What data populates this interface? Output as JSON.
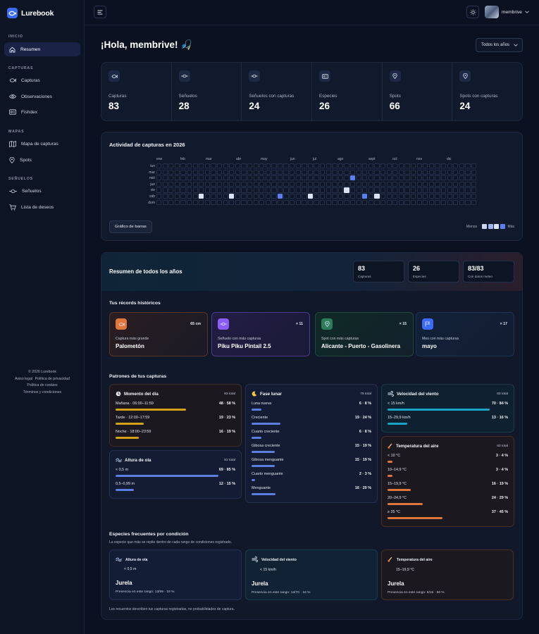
{
  "app": {
    "name": "Lurebook"
  },
  "sidebar": {
    "sections": [
      {
        "title": "INICIO",
        "items": [
          {
            "label": "Resumen",
            "icon": "home-icon",
            "active": true
          }
        ]
      },
      {
        "title": "CAPTURAS",
        "items": [
          {
            "label": "Capturas",
            "icon": "fish-icon"
          },
          {
            "label": "Observaciones",
            "icon": "eye-icon"
          },
          {
            "label": "Fishdex",
            "icon": "card-icon"
          }
        ]
      },
      {
        "title": "MAPAS",
        "items": [
          {
            "label": "Mapa de capturas",
            "icon": "map-icon"
          },
          {
            "label": "Spots",
            "icon": "pin-icon"
          }
        ]
      },
      {
        "title": "SEÑUELOS",
        "items": [
          {
            "label": "Señuelos",
            "icon": "lure-icon"
          },
          {
            "label": "Lista de deseos",
            "icon": "cart-icon"
          }
        ]
      }
    ],
    "footer": {
      "copyright": "© 2026 Lurebook",
      "legal": "Aviso legal",
      "privacy": "Política de privacidad",
      "cookies": "Política de cookies",
      "terms": "Términos y condiciones"
    }
  },
  "topbar": {
    "username": "membrive"
  },
  "main": {
    "greeting": "¡Hola, membrive! 🎣",
    "year_filter": "Todos los años",
    "stats": [
      {
        "label": "Capturas",
        "value": "83",
        "icon": "fish-icon"
      },
      {
        "label": "Señuelos",
        "value": "28",
        "icon": "lure-icon"
      },
      {
        "label": "Señuelos con capturas",
        "value": "24",
        "icon": "lure-icon"
      },
      {
        "label": "Especies",
        "value": "26",
        "icon": "card-icon"
      },
      {
        "label": "Spots",
        "value": "66",
        "icon": "pin-icon"
      },
      {
        "label": "Spots con capturas",
        "value": "24",
        "icon": "pin-icon"
      }
    ],
    "activity": {
      "title": "Actividad de capturas en 2026",
      "months": [
        "ene",
        "feb",
        "mar",
        "abr",
        "may",
        "jun",
        "jul",
        "ago",
        "sept",
        "oct",
        "nov",
        "dic"
      ],
      "days": [
        "lun",
        "mar",
        "mié",
        "jue",
        "vie",
        "sáb",
        "dom"
      ],
      "active_cells": [
        {
          "week": 7,
          "day": 5,
          "level": 1
        },
        {
          "week": 12,
          "day": 5,
          "level": 1
        },
        {
          "week": 20,
          "day": 5,
          "level": 2
        },
        {
          "week": 25,
          "day": 5,
          "level": 1
        },
        {
          "week": 31,
          "day": 4,
          "level": 1
        },
        {
          "week": 32,
          "day": 2,
          "level": 2
        },
        {
          "week": 34,
          "day": 5,
          "level": 2
        },
        {
          "week": 36,
          "day": 5,
          "level": 1
        }
      ],
      "bar_button": "Gráfico de barras",
      "legend_less": "Menos",
      "legend_more": "Más",
      "legend_colors": [
        "#cdd6ee",
        "#9fb2f2",
        "#dbe2f5",
        "#5b7ff0"
      ]
    },
    "summary": {
      "title": "Resumen de todos los años",
      "boxes": [
        {
          "value": "83",
          "label": "Capturas"
        },
        {
          "value": "26",
          "label": "Especies"
        },
        {
          "value": "83/83",
          "label": "Con datos meteo"
        }
      ],
      "records_title": "Tus récords históricos",
      "records": [
        {
          "label": "Captura más grande",
          "value": "Palometón",
          "badge": "65 cm",
          "icon": "fish-icon",
          "accent": "#e0763a"
        },
        {
          "label": "Señuelo con más capturas",
          "value": "Piku Piku Pintail 2.5",
          "badge": "× 11",
          "icon": "lure-icon",
          "accent": "#8b5cf6"
        },
        {
          "label": "Spot con más capturas",
          "value": "Alicante - Puerto - Gasolinera",
          "badge": "× 15",
          "icon": "pin-icon",
          "accent": "#2f7d5b"
        },
        {
          "label": "Mes con más capturas",
          "value": "mayo",
          "badge": "× 17",
          "icon": "calendar-icon",
          "accent": "#3b6cf6"
        }
      ],
      "patterns_title": "Patrones de tus capturas",
      "patterns": {
        "day_time": {
          "title": "Momento del día",
          "total": "83 total",
          "color": "#d4a017",
          "rows": [
            {
              "label": "Mañana · 06:00–11:59",
              "value": "48 · 58 %",
              "pct": 58
            },
            {
              "label": "Tarde · 12:00–17:59",
              "value": "19 · 23 %",
              "pct": 23
            },
            {
              "label": "Noche · 18:00–23:59",
              "value": "16 · 19 %",
              "pct": 19
            }
          ]
        },
        "wave": {
          "title": "Altura de ola",
          "total": "81 total",
          "color": "#5b7fe0",
          "rows": [
            {
              "label": "< 0,5 m",
              "value": "69 · 85 %",
              "pct": 85
            },
            {
              "label": "0,5–0,99 m",
              "value": "12 · 15 %",
              "pct": 15
            }
          ]
        },
        "moon": {
          "title": "Fase lunar",
          "total": "79 total",
          "color": "#5b7fe0",
          "rows": [
            {
              "label": "Luna nueva",
              "value": "6 · 8 %",
              "pct": 8
            },
            {
              "label": "Creciente",
              "value": "19 · 24 %",
              "pct": 24
            },
            {
              "label": "Cuarto creciente",
              "value": "6 · 8 %",
              "pct": 8
            },
            {
              "label": "Gibosa creciente",
              "value": "15 · 19 %",
              "pct": 19
            },
            {
              "label": "Gibosa menguante",
              "value": "15 · 19 %",
              "pct": 19
            },
            {
              "label": "Cuarto menguante",
              "value": "2 · 3 %",
              "pct": 3
            },
            {
              "label": "Menguante",
              "value": "16 · 20 %",
              "pct": 20
            }
          ]
        },
        "wind": {
          "title": "Velocidad del viento",
          "total": "83 total",
          "color": "#1ba3c4",
          "rows": [
            {
              "label": "< 15 km/h",
              "value": "70 · 84 %",
              "pct": 84
            },
            {
              "label": "15–29,9 km/h",
              "value": "13 · 16 %",
              "pct": 16
            }
          ]
        },
        "temp": {
          "title": "Temperatura del aire",
          "total": "83 total",
          "color": "#e0763a",
          "rows": [
            {
              "label": "< 10 °C",
              "value": "3 · 4 %",
              "pct": 4
            },
            {
              "label": "10–14,9 °C",
              "value": "3 · 4 %",
              "pct": 4
            },
            {
              "label": "15–19,9 °C",
              "value": "16 · 19 %",
              "pct": 19
            },
            {
              "label": "20–24,9 °C",
              "value": "24 · 29 %",
              "pct": 29
            },
            {
              "label": "≥ 25 °C",
              "value": "37 · 45 %",
              "pct": 45
            }
          ]
        }
      },
      "species_title": "Especies frecuentes por condición",
      "species_sub": "La especie que más se repite dentro de cada rango de condiciones registrado.",
      "species": [
        {
          "cond": "Altura de ola",
          "range": "< 0,5 m",
          "species": "Jurela",
          "presence": "Presencia en este rango: 13/69 · 19 %"
        },
        {
          "cond": "Velocidad del viento",
          "range": "< 15 km/h",
          "species": "Jurela",
          "presence": "Presencia en este rango: 13/70 · 19 %"
        },
        {
          "cond": "Temperatura del aire",
          "range": "15–19,9 °C",
          "species": "Jurela",
          "presence": "Presencia en este rango: 8/16 · 50 %"
        }
      ],
      "footnote": "Los recuentos describen tus capturas registradas, no probabilidades de captura."
    }
  }
}
